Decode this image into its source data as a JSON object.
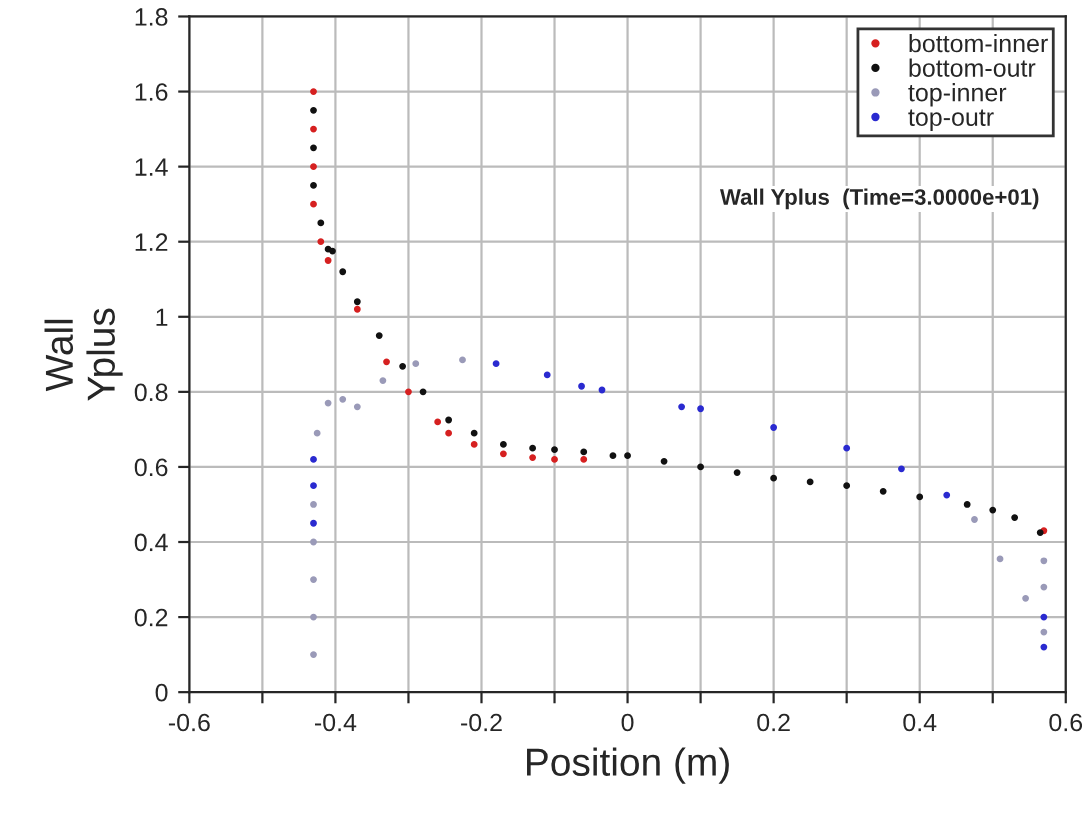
{
  "chart_data": {
    "type": "scatter",
    "xlabel": "Position (m)",
    "ylabel": "Wall\nYplus",
    "annotations": [
      "Wall Yplus  (Time=3.0000e+01)"
    ],
    "xlim": [
      -0.6,
      0.6
    ],
    "ylim": [
      0,
      1.8
    ],
    "xticks": [
      -0.6,
      {
        "value": -0.5,
        "label": null
      },
      -0.4,
      {
        "value": -0.3,
        "label": null
      },
      -0.2,
      {
        "value": -0.1,
        "label": null
      },
      0,
      {
        "value": 0.1,
        "label": null
      },
      0.2,
      {
        "value": 0.3,
        "label": null
      },
      0.4,
      {
        "value": 0.5,
        "label": null
      },
      0.6
    ],
    "yticks": [
      0,
      0.2,
      0.4,
      0.6,
      0.8,
      1,
      1.2,
      1.4,
      1.6,
      1.8
    ],
    "grid": true,
    "legend": "top right",
    "marker": "circle",
    "series": [
      {
        "name": "bottom-inner",
        "color": "#d62020",
        "x": [
          -0.43,
          -0.43,
          -0.43,
          -0.43,
          -0.42,
          -0.41,
          -0.37,
          -0.33,
          -0.3,
          -0.26,
          -0.245,
          -0.21,
          -0.17,
          -0.13,
          -0.1,
          -0.06,
          0.57
        ],
        "values": [
          1.6,
          1.5,
          1.4,
          1.3,
          1.2,
          1.15,
          1.02,
          0.88,
          0.8,
          0.72,
          0.69,
          0.66,
          0.635,
          0.625,
          0.62,
          0.62,
          0.43
        ]
      },
      {
        "name": "bottom-outr",
        "color": "#111111",
        "x": [
          -0.43,
          -0.43,
          -0.43,
          -0.42,
          -0.41,
          -0.404,
          -0.39,
          -0.37,
          -0.34,
          -0.308,
          -0.28,
          -0.245,
          -0.21,
          -0.17,
          -0.13,
          -0.1,
          -0.06,
          -0.02,
          0,
          0.05,
          0.1,
          0.15,
          0.2,
          0.25,
          0.3,
          0.35,
          0.4,
          0.465,
          0.5,
          0.53,
          0.565
        ],
        "values": [
          1.55,
          1.45,
          1.35,
          1.25,
          1.18,
          1.175,
          1.12,
          1.04,
          0.95,
          0.868,
          0.8,
          0.725,
          0.69,
          0.66,
          0.65,
          0.646,
          0.64,
          0.63,
          0.63,
          0.615,
          0.6,
          0.585,
          0.57,
          0.56,
          0.55,
          0.535,
          0.52,
          0.5,
          0.485,
          0.465,
          0.425
        ]
      },
      {
        "name": "top-inner",
        "color": "#9a9ab8",
        "x": [
          -0.43,
          -0.43,
          -0.43,
          -0.43,
          -0.43,
          -0.425,
          -0.41,
          -0.39,
          -0.37,
          -0.335,
          -0.29,
          -0.226,
          0.475,
          0.51,
          0.545,
          0.57,
          0.57,
          0.57
        ],
        "values": [
          0.1,
          0.2,
          0.3,
          0.4,
          0.5,
          0.69,
          0.77,
          0.78,
          0.76,
          0.83,
          0.875,
          0.885,
          0.46,
          0.355,
          0.25,
          0.16,
          0.28,
          0.35
        ]
      },
      {
        "name": "top-outr",
        "color": "#2a2ad0",
        "x": [
          -0.43,
          -0.43,
          -0.43,
          -0.18,
          -0.11,
          -0.063,
          -0.035,
          0.074,
          0.1,
          0.2,
          0.3,
          0.375,
          0.437,
          0.57,
          0.57
        ],
        "values": [
          0.45,
          0.55,
          0.62,
          0.875,
          0.845,
          0.815,
          0.805,
          0.76,
          0.755,
          0.705,
          0.65,
          0.595,
          0.525,
          0.2,
          0.12
        ]
      }
    ]
  }
}
